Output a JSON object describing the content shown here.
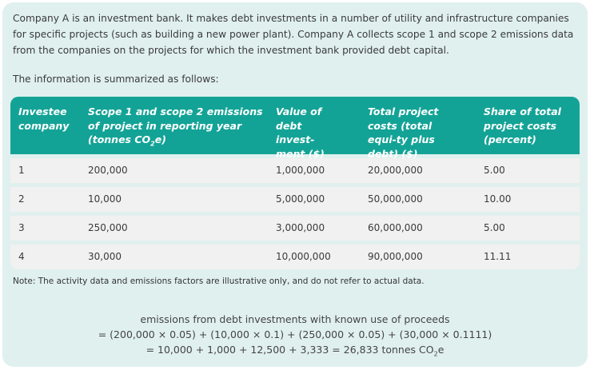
{
  "intro": "Company A is an investment bank. It makes debt investments in a number of utility and infrastructure companies for specific projects (such as building a new power plant). Company A collects scope 1 and scope 2 emissions data from the companies on the projects for which the investment bank provided debt capital.",
  "summary_intro": "The information is summarized as follows:",
  "table": {
    "headers": [
      "Investee company",
      "Scope 1 and scope 2 emissions of project in reporting year (tonnes CO",
      "Value of debt invest-ment ($)",
      "Total project costs (total equi-ty plus debt) ($)",
      "Share of total project costs (percent)"
    ],
    "header_co2_suffix": "e)",
    "header_sub": "2",
    "rows": [
      [
        "1",
        "200,000",
        "1,000,000",
        "20,000,000",
        "5.00"
      ],
      [
        "2",
        "10,000",
        "5,000,000",
        "50,000,000",
        "10.00"
      ],
      [
        "3",
        "250,000",
        "3,000,000",
        "60,000,000",
        "5.00"
      ],
      [
        "4",
        "30,000",
        "10,000,000",
        "90,000,000",
        "11.11"
      ]
    ]
  },
  "note": "Note: The activity data and emissions factors are illustrative only, and do not refer to actual data.",
  "formula": {
    "line1": "emissions from debt investments with known use of proceeds",
    "line2": "= (200,000 × 0.05) + (10,000 × 0.1) + (250,000 × 0.05) + (30,000 × 0.1111)",
    "line3": "= 10,000 + 1,000 + 12,500 + 3,333 = 26,833 tonnes CO",
    "line3_sub": "2",
    "line3_suffix": "e"
  },
  "colors": {
    "header": "#13a396",
    "panel": "#e0f0ef",
    "row": "#f0f1f0"
  }
}
